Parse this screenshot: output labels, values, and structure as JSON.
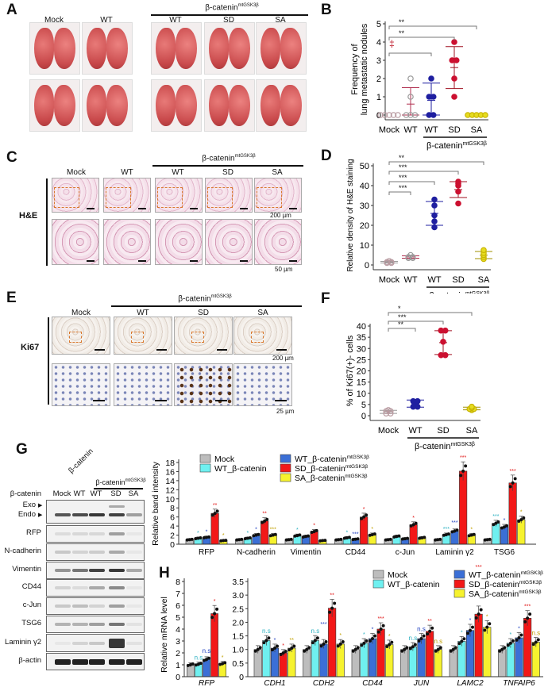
{
  "panels": {
    "A": "A",
    "B": "B",
    "C": "C",
    "D": "D",
    "E": "E",
    "F": "F",
    "G": "G",
    "H": "H"
  },
  "group_header": {
    "base": "β-catenin",
    "sup": "mtGSK3β"
  },
  "panel_a": {
    "columns": [
      "Mock",
      "WT",
      "WT",
      "SD",
      "SA"
    ]
  },
  "panel_c": {
    "columns": [
      "Mock",
      "WT",
      "WT",
      "SD",
      "SA"
    ],
    "row_label": "H&E",
    "scale_top": "200 µm",
    "scale_bottom": "50 µm"
  },
  "panel_e": {
    "columns": [
      "Mock",
      "WT",
      "SD",
      "SA"
    ],
    "row_label": "Ki67",
    "scale_top": "200 µm",
    "scale_bottom": "25 µm"
  },
  "panel_g_blot": {
    "rotated_label": "β-catenin",
    "lanes": [
      "Mock",
      "WT",
      "WT",
      "SD",
      "SA"
    ],
    "rows": [
      "β-catenin",
      "RFP",
      "N-cadherin",
      "Vimentin",
      "CD44",
      "c-Jun",
      "TSG6",
      "Laminin γ2",
      "β-actin"
    ],
    "exo": "Exo",
    "endo": "Endo"
  },
  "colors": {
    "mock": "#bdbdbd",
    "wt_bcat": "#6ff0f0",
    "wt_mt": "#3b6fd6",
    "sd_mt": "#f21818",
    "sa_mt": "#f6f22e",
    "dot_wt_mt": "#1f1fa0",
    "dot_sd": "#cc1030",
    "dot_sa": "#e6dc20"
  },
  "chart_data": [
    {
      "id": "B",
      "type": "scatter",
      "ylabel": [
        "Frequency of",
        "lung metastatic nodules"
      ],
      "categories": [
        "Mock",
        "WT",
        "WT",
        "SD",
        "SA"
      ],
      "group_label": "β-catenin",
      "group_sup": "mtGSK3β",
      "ylim": [
        0,
        5
      ],
      "yticks": [
        0,
        1,
        2,
        3,
        4,
        5
      ],
      "points": [
        [
          0,
          0,
          0,
          0,
          0
        ],
        [
          0,
          0,
          0,
          1,
          2
        ],
        [
          0,
          0,
          1,
          1,
          2
        ],
        [
          1,
          2,
          3,
          3,
          4
        ],
        [
          0,
          0,
          0,
          0,
          0
        ]
      ],
      "mean": [
        0,
        0.6,
        0.8,
        2.6,
        0
      ],
      "sd": [
        0,
        0.9,
        0.95,
        1.15,
        0
      ],
      "brackets": [
        {
          "to": 2,
          "label": "‡"
        },
        {
          "to": 3,
          "label": "**"
        },
        {
          "to": 4,
          "label": "**"
        }
      ]
    },
    {
      "id": "D",
      "type": "scatter",
      "ylabel": [
        "Relative density of H&E staining"
      ],
      "categories": [
        "Mock",
        "WT",
        "WT",
        "SD",
        "SA"
      ],
      "group_label": "β-catenin",
      "group_sup": "mtGSK3β",
      "ylim": [
        0,
        50
      ],
      "yticks": [
        0,
        10,
        20,
        30,
        40,
        50
      ],
      "points": [
        [
          1,
          1,
          1.5,
          1.5,
          2
        ],
        [
          3.5,
          3.5,
          4,
          4,
          5
        ],
        [
          19,
          22,
          25,
          30,
          33
        ],
        [
          31,
          37,
          40,
          41,
          42
        ],
        [
          3,
          4,
          5,
          6,
          7.5
        ]
      ],
      "mean": [
        1.4,
        4,
        26,
        38,
        5
      ],
      "sd": [
        0.4,
        0.6,
        6,
        4,
        1.8
      ],
      "brackets": [
        {
          "to": 1,
          "label": "***"
        },
        {
          "to": 2,
          "label": "***"
        },
        {
          "to": 3,
          "label": "***"
        },
        {
          "to": 4,
          "label": "**"
        }
      ]
    },
    {
      "id": "F",
      "type": "scatter",
      "ylabel": [
        "% of Ki67(+)- cells"
      ],
      "categories": [
        "Mock",
        "WT",
        "SD",
        "SA"
      ],
      "group_label": "β-catenin",
      "group_sup": "mtGSK3β",
      "ylim": [
        0,
        40
      ],
      "yticks": [
        0,
        5,
        10,
        15,
        20,
        25,
        30,
        35,
        40
      ],
      "points": [
        [
          1,
          1,
          2,
          2,
          2.5
        ],
        [
          4,
          4,
          6,
          6.5,
          6.5
        ],
        [
          27,
          27,
          33,
          38,
          38
        ],
        [
          2.5,
          3,
          3,
          3.5,
          4
        ]
      ],
      "mean": [
        1.7,
        5.4,
        32.6,
        3.2
      ],
      "sd": [
        0.7,
        1.6,
        5.3,
        0.6
      ],
      "brackets": [
        {
          "to": 1,
          "label": "**"
        },
        {
          "to": 2,
          "label": "***"
        },
        {
          "to": 3,
          "label": "*"
        }
      ]
    },
    {
      "id": "G",
      "type": "bar",
      "ylabel": "Relative band intensity",
      "ylim": [
        0,
        18
      ],
      "yticks": [
        0,
        2,
        4,
        6,
        8,
        10,
        12,
        14,
        16,
        18
      ],
      "categories": [
        "RFP",
        "N-cadherin",
        "Vimentin",
        "CD44",
        "c-Jun",
        "Laminin γ2",
        "TSG6"
      ],
      "series": [
        {
          "name": "Mock",
          "values": [
            1,
            1,
            1,
            1,
            1,
            1,
            1
          ],
          "sig": [
            "",
            "",
            "",
            "",
            "",
            "",
            ""
          ]
        },
        {
          "name": "WT_β-catenin",
          "values": [
            1.3,
            1.3,
            1.9,
            1.4,
            1.7,
            2.1,
            4.6
          ],
          "sig": [
            "*",
            "*",
            "*",
            "*",
            "",
            "***",
            "***"
          ]
        },
        {
          "name": "WT_β-catenin",
          "sup": "mtGSK3β",
          "values": [
            1.5,
            2.0,
            1.7,
            1.1,
            1.2,
            2.9,
            3.8
          ],
          "sig": [
            "*",
            "*",
            "",
            "***",
            "",
            "***",
            "*"
          ]
        },
        {
          "name": "SD_β-catenin",
          "sup": "mtGSK3β",
          "values": [
            6.8,
            5.1,
            2.8,
            6.0,
            4.3,
            16.1,
            13.5
          ],
          "sig": [
            "**",
            "**",
            "*",
            "*",
            "*",
            "***",
            "***"
          ]
        },
        {
          "name": "SA_β-catenin",
          "sup": "mtGSK3β",
          "values": [
            0.8,
            2.0,
            0.8,
            2.1,
            1.4,
            2.0,
            5.4
          ],
          "sig": [
            "*",
            "***",
            "",
            "*",
            "",
            "*",
            "*"
          ]
        }
      ]
    },
    {
      "id": "H",
      "type": "bar",
      "ylabel": "Relative mRNA level",
      "left": {
        "ylim": [
          0,
          8
        ],
        "yticks": [
          0,
          1,
          2,
          3,
          4,
          5,
          6,
          7,
          8
        ],
        "categories": [
          "RFP"
        ],
        "series": [
          [
            1
          ],
          [
            1.05
          ],
          [
            1.45
          ],
          [
            5.3
          ],
          [
            1.1
          ]
        ],
        "sig": [
          [
            ""
          ],
          [
            "n.s"
          ],
          [
            "n.s"
          ],
          [
            "*"
          ],
          [
            "*"
          ]
        ]
      },
      "right": {
        "ylim": [
          0,
          3.5
        ],
        "yticks": [
          "0",
          "0.5",
          "1.0",
          "1.5",
          "2.0",
          "2.5",
          "3.0",
          "3.5"
        ],
        "categories": [
          "CDH1",
          "CDH2",
          "CD44",
          "JUN",
          "LAMC2",
          "TNFAIP6"
        ],
        "series": [
          [
            1,
            1,
            1,
            1,
            1,
            1
          ],
          [
            1.33,
            1.33,
            1.23,
            1.1,
            1.3,
            1.23
          ],
          [
            1.05,
            1.2,
            1.4,
            1.4,
            1.7,
            1.43
          ],
          [
            0.87,
            2.52,
            1.75,
            1.67,
            2.3,
            2.15
          ],
          [
            1.05,
            1.2,
            1.18,
            1.0,
            1.82,
            1.27
          ]
        ],
        "sig": [
          [
            "",
            "",
            "",
            "",
            "",
            ""
          ],
          [
            "n.s",
            "n.s",
            "*",
            "n.s",
            "*",
            "*"
          ],
          [
            "*",
            "***",
            "*",
            "n.s",
            "*",
            "*"
          ],
          [
            "*",
            "**",
            "***",
            "**",
            "***",
            "***"
          ],
          [
            "**",
            "*",
            "*",
            "n.s",
            "*",
            "n.s"
          ]
        ]
      },
      "legend": [
        "Mock",
        "WT_β-catenin",
        "WT_β-catenin",
        "SD_β-catenin",
        "SA_β-catenin"
      ],
      "legend_sup": "mtGSK3β"
    }
  ]
}
